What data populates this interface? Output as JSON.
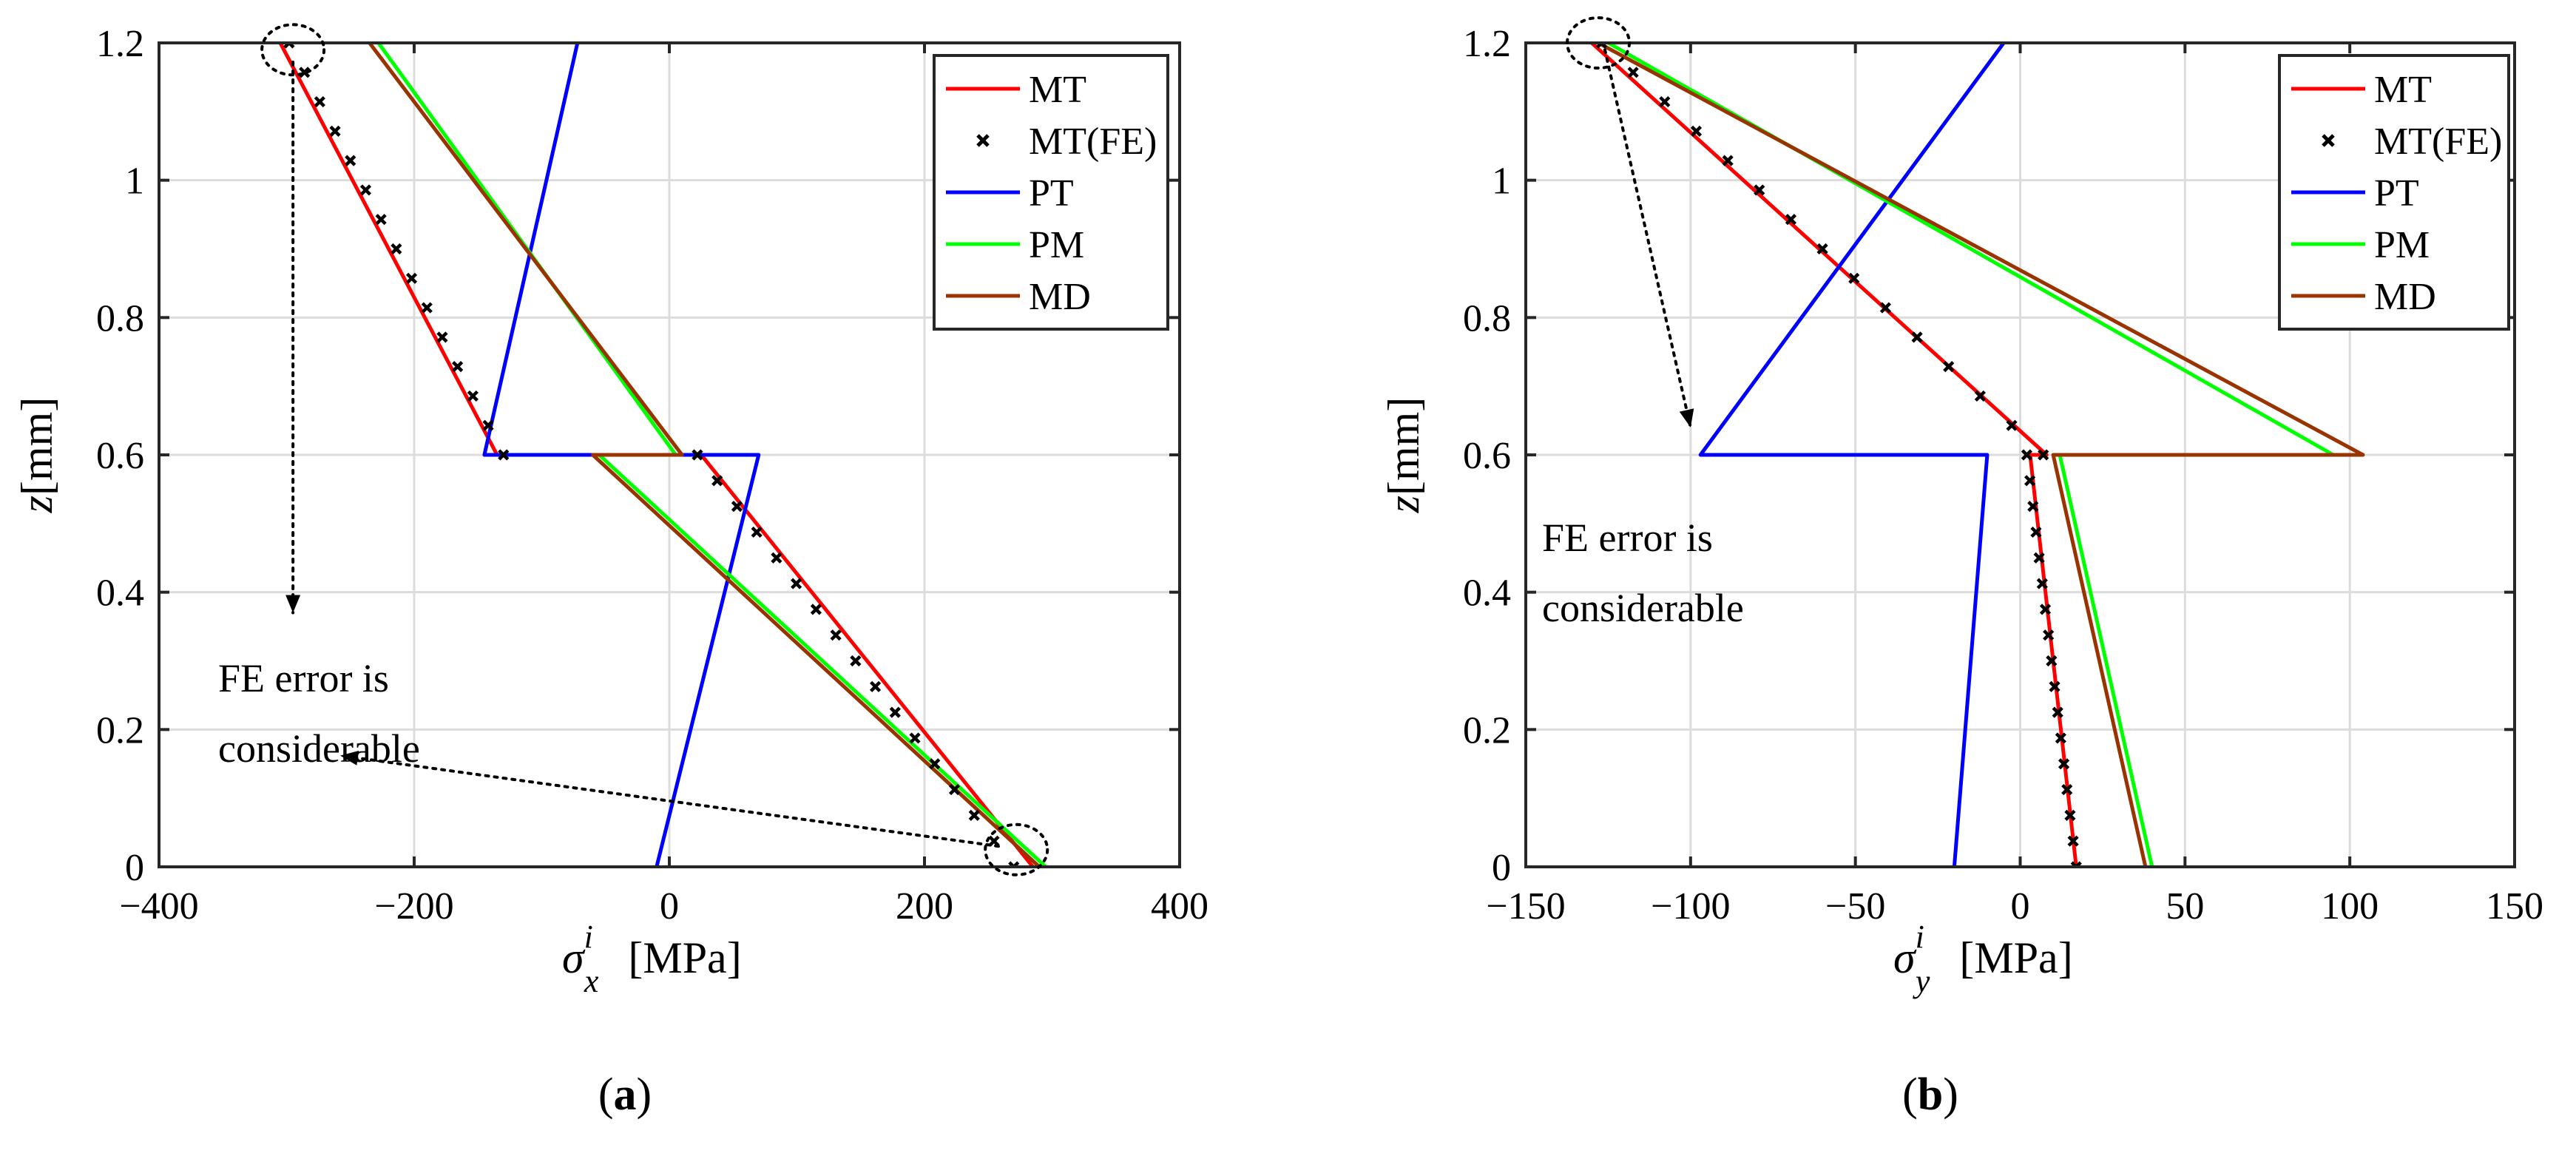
{
  "chart_data": [
    {
      "type": "line",
      "panel_label": "(a)",
      "panel_letter": "a",
      "xlabel_symbol": "σ",
      "xlabel_sup": "i",
      "xlabel_sub": "x",
      "xlabel_unit": "[MPa]",
      "ylabel_italic": "z",
      "ylabel_unit": "[mm]",
      "xlim": [
        -400,
        400
      ],
      "ylim": [
        0,
        1.2
      ],
      "xticks": [
        -400,
        -200,
        0,
        200,
        400
      ],
      "xtick_labels": [
        "−400",
        "−200",
        "0",
        "200",
        "400"
      ],
      "yticks": [
        0,
        0.2,
        0.4,
        0.6,
        0.8,
        1,
        1.2
      ],
      "ytick_labels": [
        "0",
        "0.2",
        "0.4",
        "0.6",
        "0.8",
        "1",
        "1.2"
      ],
      "grid": true,
      "legend": "top-right",
      "series": [
        {
          "name": "MT",
          "color": "#ff0000",
          "style": "line",
          "points": [
            [
              -305,
              1.2
            ],
            [
              -135,
              0.6
            ],
            [
              25,
              0.6
            ],
            [
              285,
              0
            ]
          ]
        },
        {
          "name": "MT(FE)",
          "color": "#000000",
          "style": "marker",
          "points": [
            [
              -298,
              1.2
            ],
            [
              -130,
              0.6
            ],
            [
              22,
              0.6
            ],
            [
              270,
              0
            ]
          ],
          "count": 31
        },
        {
          "name": "PT",
          "color": "#0000ff",
          "style": "line",
          "points": [
            [
              -72,
              1.2
            ],
            [
              -145,
              0.6
            ],
            [
              70,
              0.6
            ],
            [
              -10,
              0
            ]
          ]
        },
        {
          "name": "PM",
          "color": "#00ff00",
          "style": "line",
          "points": [
            [
              -228,
              1.2
            ],
            [
              5,
              0.6
            ],
            [
              -55,
              0.6
            ],
            [
              295,
              0
            ]
          ]
        },
        {
          "name": "MD",
          "color": "#993300",
          "style": "line",
          "points": [
            [
              -235,
              1.2
            ],
            [
              10,
              0.6
            ],
            [
              -60,
              0.6
            ],
            [
              290,
              0
            ]
          ]
        }
      ],
      "annotation": {
        "lines": [
          "FE error is",
          "considerable"
        ],
        "circles": [
          [
            -295,
            1.19
          ],
          [
            272,
            0.025
          ]
        ]
      }
    },
    {
      "type": "line",
      "panel_label": "(b)",
      "panel_letter": "b",
      "xlabel_symbol": "σ",
      "xlabel_sup": "i",
      "xlabel_sub": "y",
      "xlabel_unit": "[MPa]",
      "ylabel_italic": "z",
      "ylabel_unit": "[mm]",
      "xlim": [
        -150,
        150
      ],
      "ylim": [
        0,
        1.2
      ],
      "xticks": [
        -150,
        -100,
        -50,
        0,
        50,
        100,
        150
      ],
      "xtick_labels": [
        "−150",
        "−100",
        "−50",
        "0",
        "50",
        "100",
        "150"
      ],
      "yticks": [
        0,
        0.2,
        0.4,
        0.6,
        0.8,
        1,
        1.2
      ],
      "ytick_labels": [
        "0",
        "0.2",
        "0.4",
        "0.6",
        "0.8",
        "1",
        "1.2"
      ],
      "grid": true,
      "legend": "top-right",
      "series": [
        {
          "name": "MT",
          "color": "#ff0000",
          "style": "line",
          "points": [
            [
              -130,
              1.2
            ],
            [
              8,
              0.6
            ],
            [
              3,
              0.6
            ],
            [
              17,
              0
            ]
          ]
        },
        {
          "name": "MT(FE)",
          "color": "#000000",
          "style": "marker",
          "points": [
            [
              -127,
              1.2
            ],
            [
              7,
              0.6
            ],
            [
              2,
              0.6
            ],
            [
              17,
              0
            ]
          ],
          "count": 31
        },
        {
          "name": "PT",
          "color": "#0000ff",
          "style": "line",
          "points": [
            [
              -5,
              1.2
            ],
            [
              -97,
              0.6
            ],
            [
              -10,
              0.6
            ],
            [
              -20,
              0
            ]
          ]
        },
        {
          "name": "PM",
          "color": "#00ff00",
          "style": "line",
          "points": [
            [
              -125,
              1.2
            ],
            [
              95,
              0.6
            ],
            [
              12,
              0.6
            ],
            [
              40,
              0
            ]
          ]
        },
        {
          "name": "MD",
          "color": "#993300",
          "style": "line",
          "points": [
            [
              -128,
              1.2
            ],
            [
              104,
              0.6
            ],
            [
              10,
              0.6
            ],
            [
              38,
              0
            ]
          ]
        }
      ],
      "annotation": {
        "lines": [
          "FE error is",
          "considerable"
        ],
        "circles": [
          [
            -128,
            1.2
          ]
        ]
      }
    }
  ]
}
